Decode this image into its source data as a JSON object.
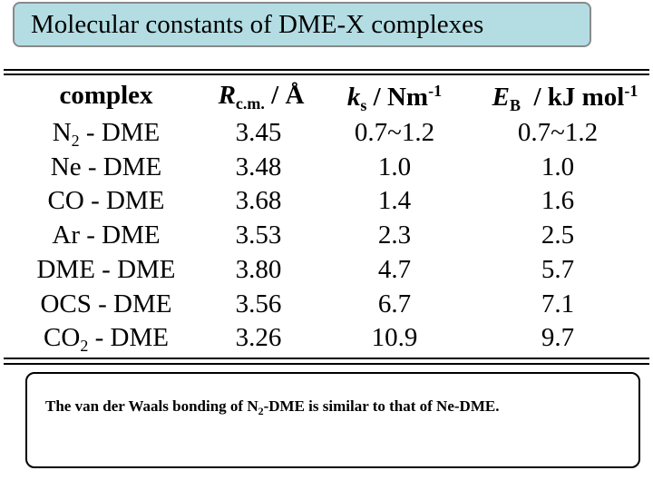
{
  "title": "Molecular constants of DME-X complexes",
  "headers": {
    "complex": "complex",
    "r_symbol": "R",
    "r_sub": "c.m.",
    "r_unit": " / Å",
    "ks_symbol": "k",
    "ks_sub": "s",
    "ks_unit": " / Nm",
    "ks_exp": "-1",
    "eb_symbol": "E",
    "eb_sub": "B",
    "eb_unit": "  / kJ mol",
    "eb_exp": "-1"
  },
  "rows": [
    {
      "name_pre": "N",
      "name_sub": "2",
      "name_post": " - DME",
      "r": "3.45",
      "ks": "0.7~1.2",
      "eb": "0.7~1.2"
    },
    {
      "name_pre": "Ne - DME",
      "name_sub": "",
      "name_post": "",
      "r": "3.48",
      "ks": "1.0",
      "eb": "1.0"
    },
    {
      "name_pre": "CO - DME",
      "name_sub": "",
      "name_post": "",
      "r": "3.68",
      "ks": "1.4",
      "eb": "1.6"
    },
    {
      "name_pre": "Ar - DME",
      "name_sub": "",
      "name_post": "",
      "r": "3.53",
      "ks": "2.3",
      "eb": "2.5"
    },
    {
      "name_pre": "DME - DME",
      "name_sub": "",
      "name_post": "",
      "r": "3.80",
      "ks": "4.7",
      "eb": "5.7"
    },
    {
      "name_pre": "OCS - DME",
      "name_sub": "",
      "name_post": "",
      "r": "3.56",
      "ks": "6.7",
      "eb": "7.1"
    },
    {
      "name_pre": "CO",
      "name_sub": "2",
      "name_post": " - DME",
      "r": "3.26",
      "ks": "10.9",
      "eb": "9.7"
    }
  ],
  "note": {
    "pre": "The van der Waals bonding of N",
    "sub": "2",
    "post": "-DME is similar to that of Ne-DME."
  }
}
